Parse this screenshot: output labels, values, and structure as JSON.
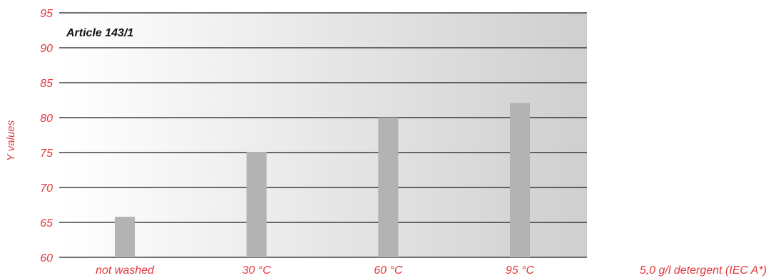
{
  "chart_data": {
    "type": "bar",
    "panel_label": "Article 143/1",
    "categories": [
      "not washed",
      "30 °C",
      "60 °C",
      "95 °C"
    ],
    "values": [
      65.8,
      75.1,
      80.0,
      82.1
    ],
    "ylabel": "Y values",
    "xlabel": "5,0 g/l detergent (IEC A*)",
    "ylim": [
      60,
      95
    ],
    "yticks": [
      60,
      65,
      70,
      75,
      80,
      85,
      90,
      95
    ],
    "grid": true,
    "legend": "none",
    "colors": {
      "bar": "#b3b3b3",
      "label_red": "#e4363c",
      "grid_line": "#1a1a1a",
      "panel_light": "#ffffff",
      "panel_dark": "#cfcfcf"
    }
  }
}
